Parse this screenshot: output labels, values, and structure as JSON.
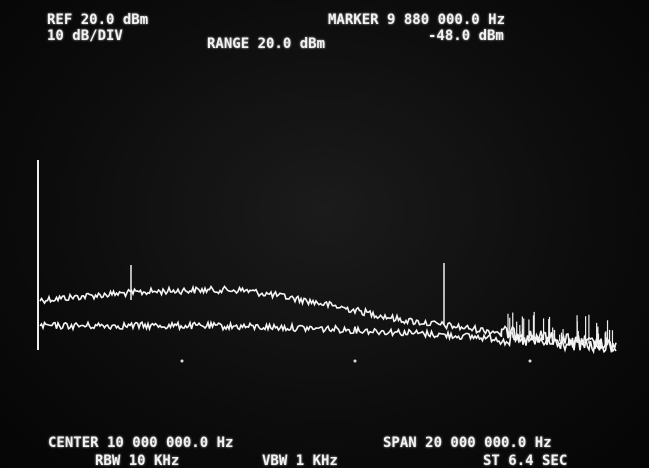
{
  "header": {
    "reference": "REF 20.0 dBm",
    "scale": "10 dB/DIV",
    "range": "RANGE 20.0 dBm",
    "marker_frequency": "MARKER 9 880 000.0 Hz",
    "marker_level": "-48.0 dBm"
  },
  "footer": {
    "center": "CENTER 10 000 000.0 Hz",
    "span": "SPAN 20 000 000.0 Hz",
    "rbw": "RBW 10 KHz",
    "vbw": "VBW 1 KHz",
    "sweep_time": "ST 6.4 SEC"
  }
}
